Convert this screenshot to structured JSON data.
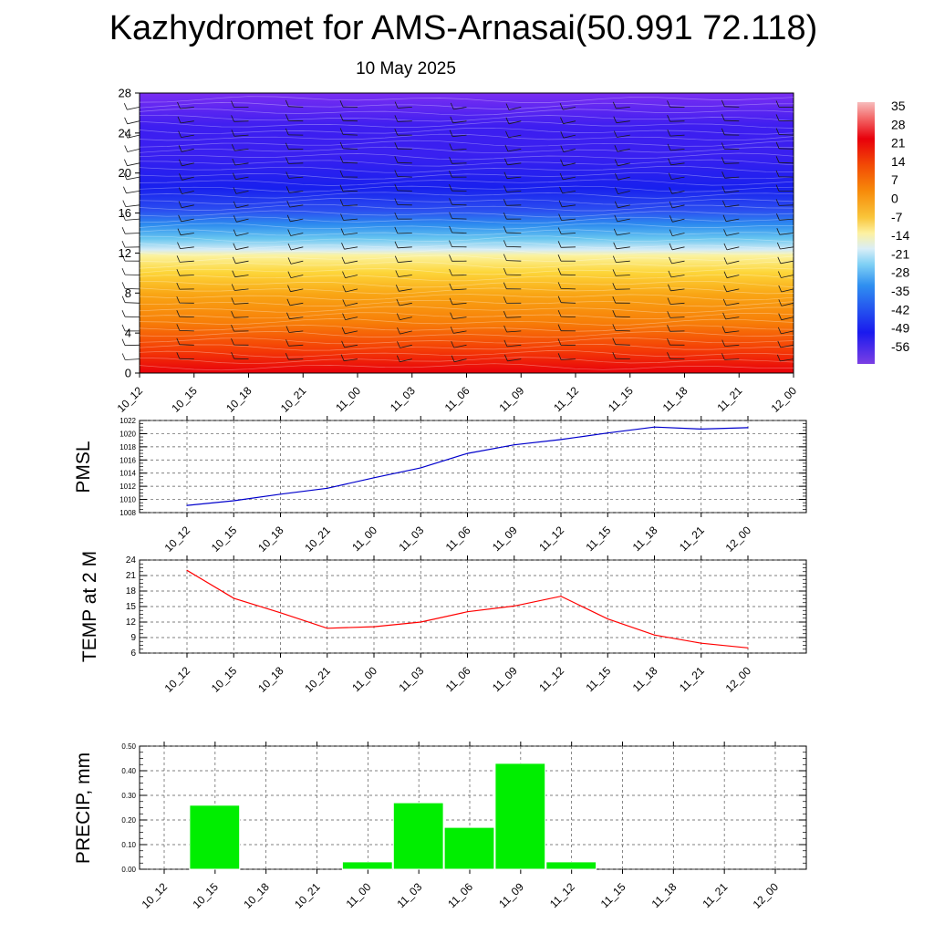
{
  "header": {
    "title": "Kazhydromet for AMS-Arnasai(50.991 72.118)",
    "date": "10 May 2025"
  },
  "time_labels": [
    "10_12",
    "10_15",
    "10_18",
    "10_21",
    "11_00",
    "11_03",
    "11_06",
    "11_09",
    "11_12",
    "11_15",
    "11_18",
    "11_21",
    "12_00"
  ],
  "colorbar": {
    "labels": [
      "35",
      "28",
      "21",
      "14",
      "7",
      "0",
      "-7",
      "-14",
      "-21",
      "-28",
      "-35",
      "-42",
      "-49",
      "-56"
    ]
  },
  "chart_data": [
    {
      "type": "heatmap",
      "title": "Kazhydromet for AMS-Arnasai(50.991 72.118)",
      "subtitle": "10 May 2025",
      "x": [
        "10_12",
        "10_15",
        "10_18",
        "10_21",
        "11_00",
        "11_03",
        "11_06",
        "11_09",
        "11_12",
        "11_15",
        "11_18",
        "11_21",
        "12_00"
      ],
      "y_ticks": [
        0,
        4,
        8,
        12,
        16,
        20,
        24,
        28
      ],
      "ylim": [
        0,
        28
      ],
      "colorbar_range": [
        -56,
        35
      ],
      "note_colors": {
        "warm": "#e8000b",
        "cold": "#2a00f0"
      }
    },
    {
      "type": "line",
      "ylabel": "PMSL",
      "x": [
        "10_12",
        "10_15",
        "10_18",
        "10_21",
        "11_00",
        "11_03",
        "11_06",
        "11_09",
        "11_12",
        "11_15",
        "11_18",
        "11_21",
        "12_00"
      ],
      "y": [
        1009.1,
        1009.8,
        1010.8,
        1011.7,
        1013.3,
        1014.8,
        1017.0,
        1018.3,
        1019.1,
        1020.1,
        1021.0,
        1020.7,
        1020.9
      ],
      "ylim": [
        1008,
        1022
      ],
      "yticks": [
        "1008",
        "1010",
        "1012",
        "1014",
        "1016",
        "1018",
        "1020",
        "1022"
      ],
      "color": "#0000cc"
    },
    {
      "type": "line",
      "ylabel": "TEMP at 2 M",
      "x": [
        "10_12",
        "10_15",
        "10_18",
        "10_21",
        "11_00",
        "11_03",
        "11_06",
        "11_09",
        "11_12",
        "11_15",
        "11_18",
        "11_21",
        "12_00"
      ],
      "y": [
        22.0,
        16.6,
        13.8,
        10.8,
        11.1,
        12.0,
        14.0,
        15.1,
        17.0,
        12.6,
        9.5,
        7.9,
        7.0
      ],
      "ylim": [
        6,
        24
      ],
      "yticks": [
        "6",
        "9",
        "12",
        "15",
        "18",
        "21",
        "24"
      ],
      "color": "#ff0000"
    },
    {
      "type": "bar",
      "ylabel": "PRECIP, mm",
      "categories": [
        "10_12",
        "10_15",
        "10_18",
        "10_21",
        "11_00",
        "11_03",
        "11_06",
        "11_09",
        "11_12",
        "11_15",
        "11_18",
        "11_21",
        "12_00"
      ],
      "values": [
        0,
        0.26,
        0,
        0,
        0.03,
        0.27,
        0.17,
        0.43,
        0.03,
        0,
        0,
        0,
        0
      ],
      "ylim": [
        0,
        0.5
      ],
      "yticks": [
        "0.00",
        "0.10",
        "0.20",
        "0.30",
        "0.40",
        "0.50"
      ],
      "color": "#00ee00"
    }
  ]
}
